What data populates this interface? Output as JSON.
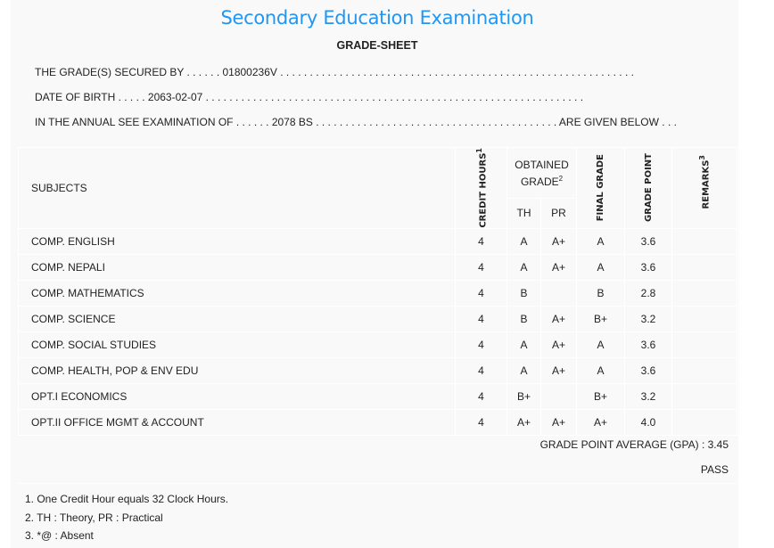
{
  "header": {
    "title": "Secondary Education Examination",
    "subtitle": "GRADE-SHEET"
  },
  "info": {
    "secured_by": "THE GRADE(S) SECURED BY . . . . . . 01800236V . . . . . . . . . . . . . . . . . . . . . . . . . . . . . . . . . . . . . . . . . . . . . . . . . . . . . . . . . . . .",
    "dob": "DATE OF BIRTH . . . . . 2063-02-07 . . . . . . . . . . . . . . . . . . . . . . . . . . . . . . . . . . . . . . . . . . . . . . . . . . . . . . . . . . . . . . . .",
    "exam": "IN THE ANNUAL SEE EXAMINATION OF . . . . . . 2078 BS . . . . . . . . . . . . . . . . . . . . . . . . . . . . . . . . . . . . . . . . . ARE GIVEN BELOW . . ."
  },
  "table": {
    "headers": {
      "subjects": "SUBJECTS",
      "credit": "CREDIT HOURS",
      "credit_sup": "1",
      "obtained": "OBTAINED GRADE",
      "obtained_sup": "2",
      "th": "TH",
      "pr": "PR",
      "final": "FINAL GRADE",
      "gp": "GRADE POINT",
      "remarks": "REMARKS",
      "remarks_sup": "3"
    },
    "rows": [
      {
        "subject": "COMP. ENGLISH",
        "credit": "4",
        "th": "A",
        "pr": "A+",
        "final": "A",
        "gp": "3.6",
        "remarks": ""
      },
      {
        "subject": "COMP. NEPALI",
        "credit": "4",
        "th": "A",
        "pr": "A+",
        "final": "A",
        "gp": "3.6",
        "remarks": ""
      },
      {
        "subject": "COMP. MATHEMATICS",
        "credit": "4",
        "th": "B",
        "pr": "",
        "final": "B",
        "gp": "2.8",
        "remarks": ""
      },
      {
        "subject": "COMP. SCIENCE",
        "credit": "4",
        "th": "B",
        "pr": "A+",
        "final": "B+",
        "gp": "3.2",
        "remarks": ""
      },
      {
        "subject": "COMP. SOCIAL STUDIES",
        "credit": "4",
        "th": "A",
        "pr": "A+",
        "final": "A",
        "gp": "3.6",
        "remarks": ""
      },
      {
        "subject": "COMP. HEALTH, POP & ENV EDU",
        "credit": "4",
        "th": "A",
        "pr": "A+",
        "final": "A",
        "gp": "3.6",
        "remarks": ""
      },
      {
        "subject": "OPT.I ECONOMICS",
        "credit": "4",
        "th": "B+",
        "pr": "",
        "final": "B+",
        "gp": "3.2",
        "remarks": ""
      },
      {
        "subject": "OPT.II OFFICE MGMT & ACCOUNT",
        "credit": "4",
        "th": "A+",
        "pr": "A+",
        "final": "A+",
        "gp": "4.0",
        "remarks": ""
      }
    ]
  },
  "summary": {
    "gpa": "GRADE POINT AVERAGE (GPA) : 3.45",
    "result": "PASS"
  },
  "notes": [
    "1. One Credit Hour equals 32 Clock Hours.",
    "2. TH : Theory, PR : Practical",
    "3. *@ : Absent"
  ],
  "colors": {
    "title": "#2196f3",
    "panel": "#f9f9f9"
  }
}
